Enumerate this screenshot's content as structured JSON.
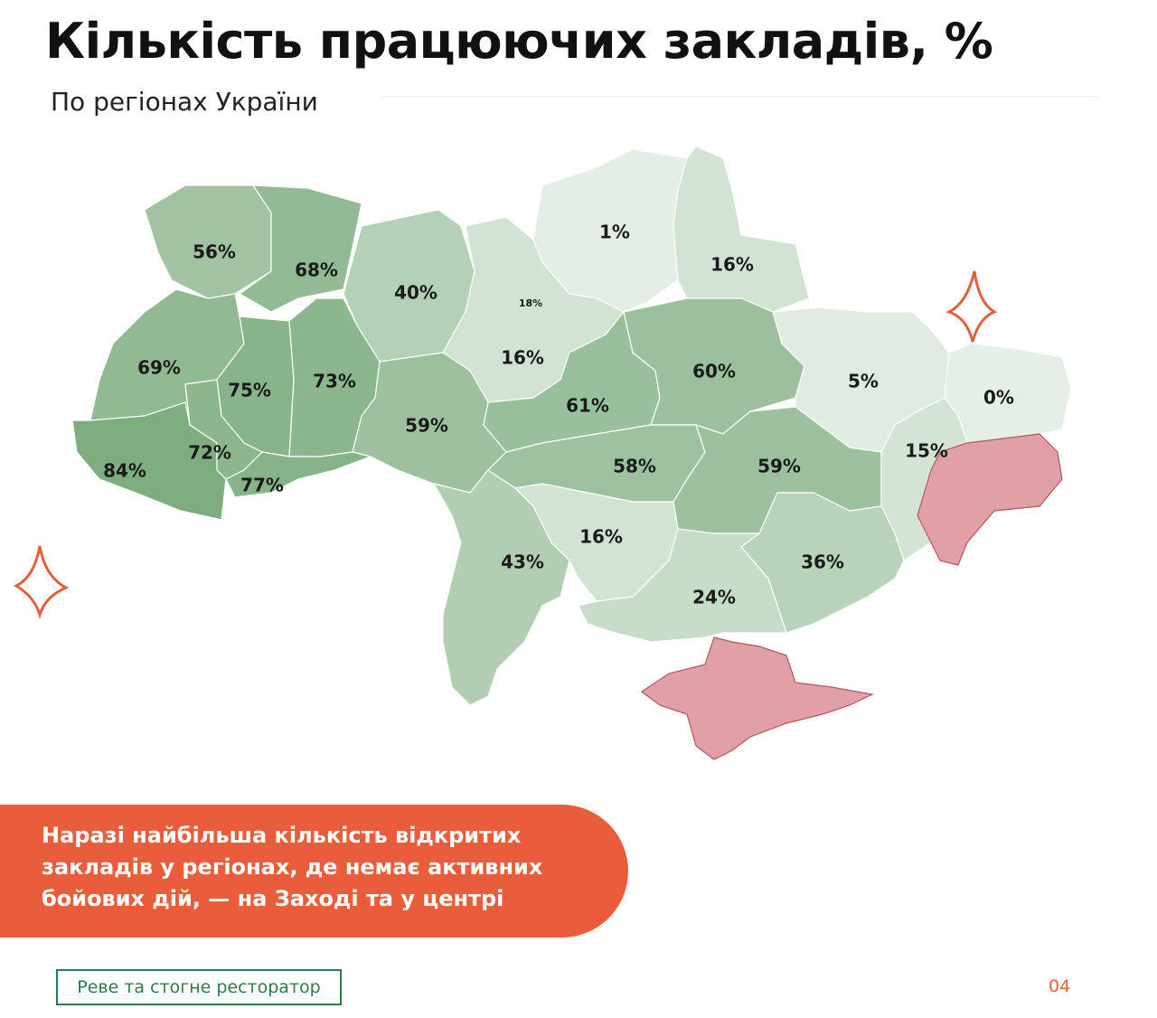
{
  "header": {
    "title": "Кількість працюючих закладів, %",
    "subtitle": "По регіонах України"
  },
  "map": {
    "values": [
      56,
      68,
      40,
      18,
      16,
      1,
      16,
      69,
      75,
      73,
      59,
      61,
      60,
      5,
      0,
      84,
      72,
      77,
      58,
      59,
      15,
      43,
      16,
      36,
      24
    ],
    "value_labels": [
      "56%",
      "68%",
      "40%",
      "18%",
      "16%",
      "1%",
      "16%",
      "69%",
      "75%",
      "73%",
      "59%",
      "61%",
      "60%",
      "5%",
      "0%",
      "84%",
      "72%",
      "77%",
      "58%",
      "59%",
      "15%",
      "43%",
      "16%",
      "36%",
      "24%"
    ]
  },
  "callout": {
    "lines": [
      "Наразі найбільша кількість відкритих",
      "закладів у регіонах, де немає активних",
      "бойових дій, — на Заході та у центрі"
    ]
  },
  "footer": {
    "brand": "Реве та стогне ресторатор",
    "page": "04"
  }
}
